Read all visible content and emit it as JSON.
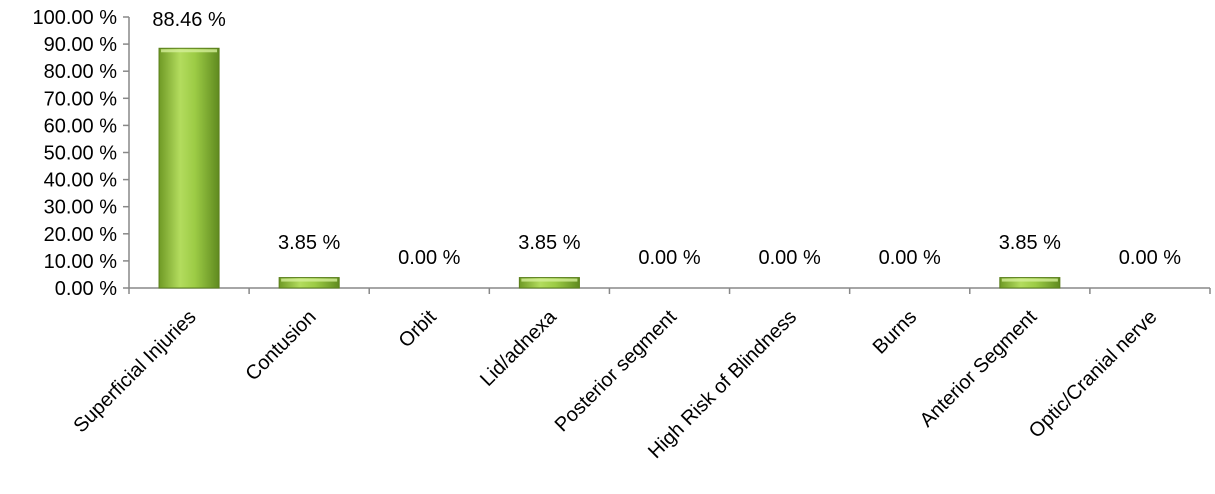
{
  "chart_data": {
    "type": "bar",
    "categories": [
      "Superficial Injuries",
      "Contusion",
      "Orbit",
      "Lid/adnexa",
      "Posterior segment",
      "High Risk of Blindness",
      "Burns",
      "Anterior Segment",
      "Optic/Cranial nerve"
    ],
    "values": [
      88.46,
      3.85,
      0.0,
      3.85,
      0.0,
      0.0,
      0.0,
      3.85,
      0.0
    ],
    "data_labels": [
      "88.46 %",
      "3.85 %",
      "0.00 %",
      "3.85 %",
      "0.00 %",
      "0.00 %",
      "0.00 %",
      "3.85 %",
      "0.00 %"
    ],
    "yticks": [
      "0.00 %",
      "10.00 %",
      "20.00 %",
      "30.00 %",
      "40.00 %",
      "50.00 %",
      "60.00 %",
      "70.00 %",
      "80.00 %",
      "90.00 %",
      "100.00 %"
    ],
    "ylim": [
      0,
      100
    ],
    "grid": false,
    "legend": "none",
    "bar_color": "#8cb83a"
  }
}
